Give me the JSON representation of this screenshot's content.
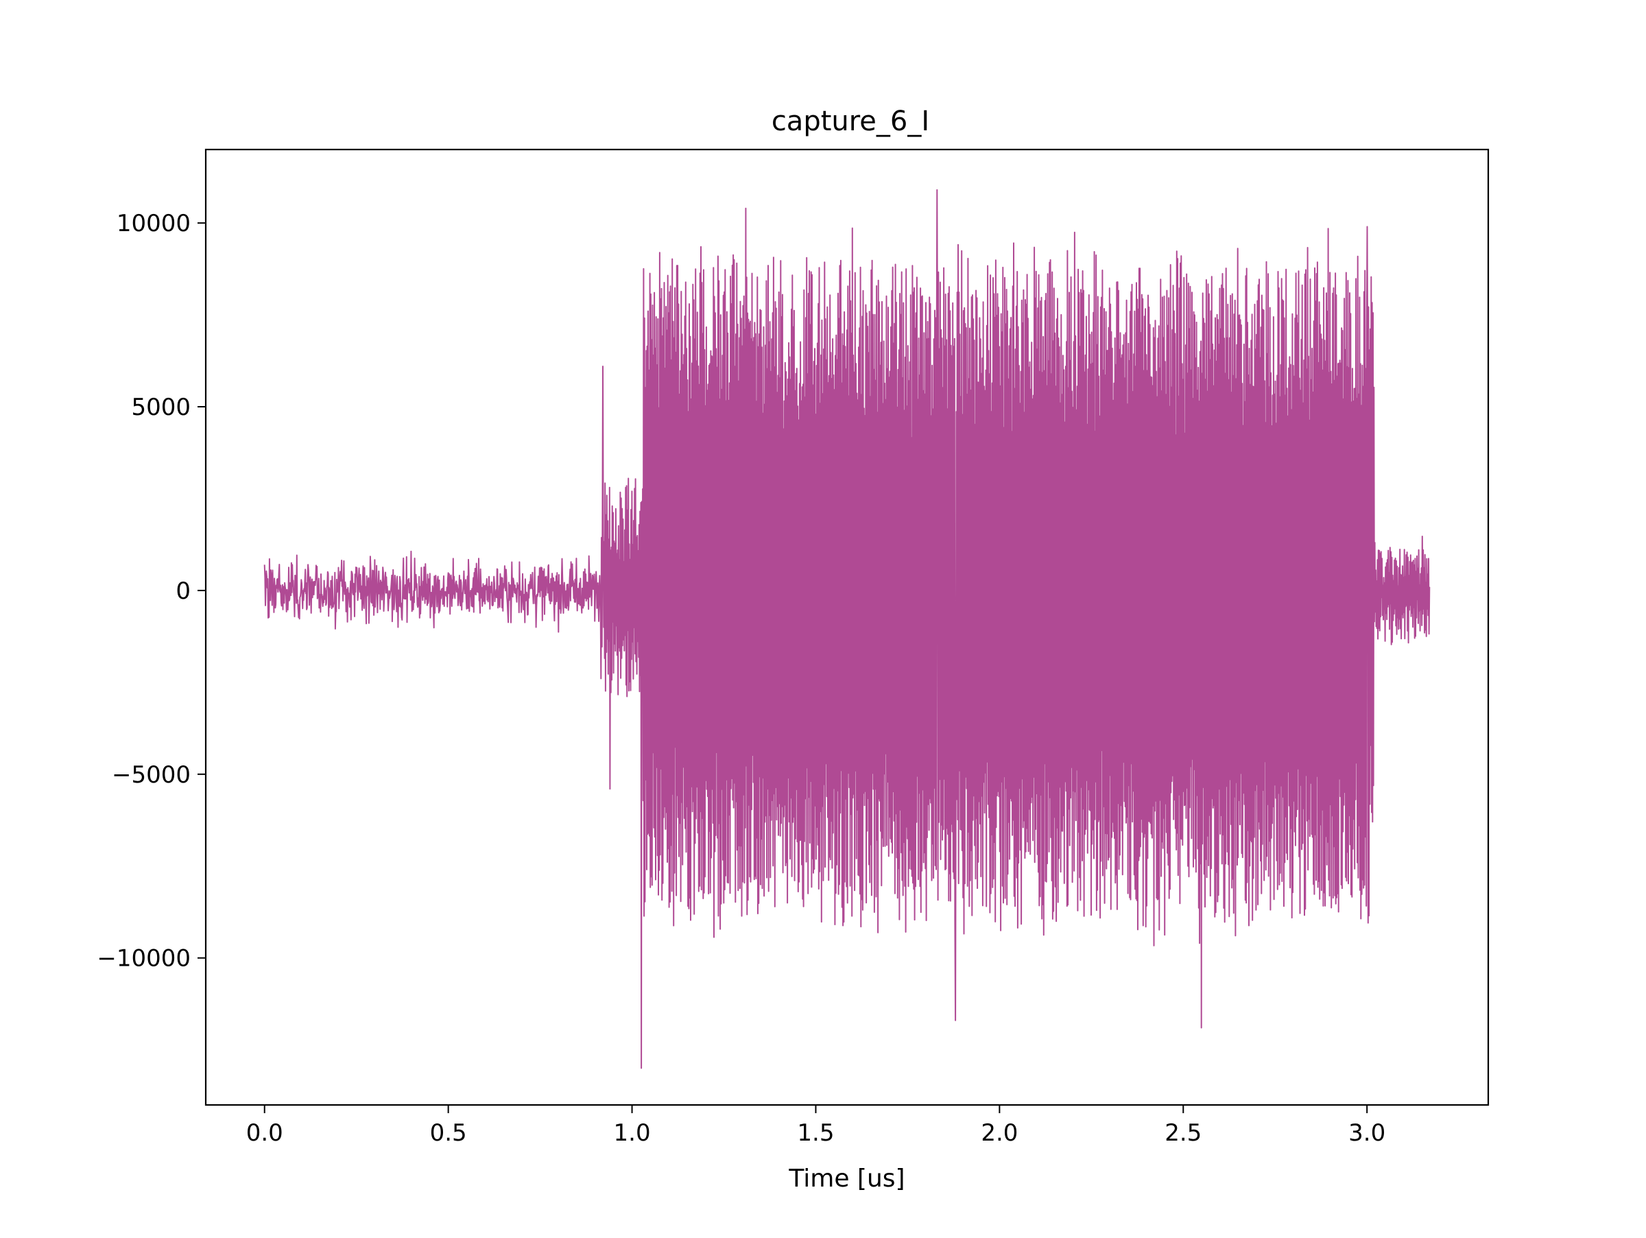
{
  "chart_data": {
    "type": "line",
    "title": "capture_6_I",
    "xlabel": "Time [us]",
    "ylabel": "",
    "xlim": [
      -0.16,
      3.33
    ],
    "ylim": [
      -14000,
      12000
    ],
    "xticks": [
      0.0,
      0.5,
      1.0,
      1.5,
      2.0,
      2.5,
      3.0
    ],
    "xtick_labels": [
      "0.0",
      "0.5",
      "1.0",
      "1.5",
      "2.0",
      "2.5",
      "3.0"
    ],
    "yticks": [
      10000,
      5000,
      0,
      -5000,
      -10000
    ],
    "ytick_labels": [
      "10000",
      "5000",
      "0",
      "−5000",
      "−10000"
    ],
    "grid": false,
    "legend": "none",
    "series": [
      {
        "color": "#b04a94",
        "x_start": 0.0,
        "x_end": 3.17,
        "segments": [
          {
            "x_start": 0.0,
            "x_end": 0.915,
            "amplitude": 1000,
            "peak_max": 2500,
            "peak_min": -1700
          },
          {
            "x_start": 0.915,
            "x_end": 1.03,
            "amplitude": 4500,
            "peak_max": 6100,
            "peak_min": -5400
          },
          {
            "x_start": 1.03,
            "x_end": 3.02,
            "amplitude": 9000,
            "peak_max": 10900,
            "peak_min": -13000
          },
          {
            "x_start": 3.02,
            "x_end": 3.17,
            "amplitude": 1800,
            "peak_max": 4000,
            "peak_min": -3500
          }
        ],
        "extremes": [
          {
            "x": 0.0,
            "y": 700
          },
          {
            "x": 0.92,
            "y": 6100
          },
          {
            "x": 0.94,
            "y": -5400
          },
          {
            "x": 1.025,
            "y": 10000
          },
          {
            "x": 1.025,
            "y": -13000
          },
          {
            "x": 1.31,
            "y": 10400
          },
          {
            "x": 1.83,
            "y": 10900
          },
          {
            "x": 1.88,
            "y": -11700
          },
          {
            "x": 2.55,
            "y": -11900
          },
          {
            "x": 3.0,
            "y": 9900
          },
          {
            "x": 3.17,
            "y": 100
          }
        ]
      }
    ]
  }
}
